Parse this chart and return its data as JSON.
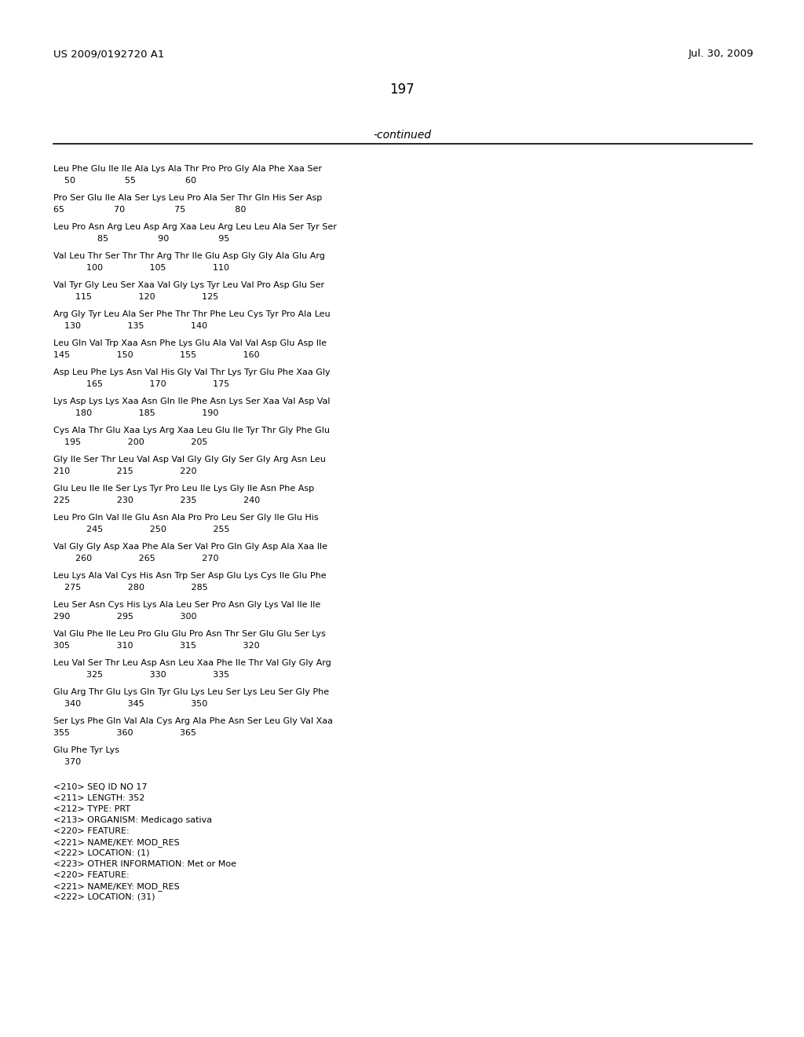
{
  "header_left": "US 2009/0192720 A1",
  "header_right": "Jul. 30, 2009",
  "page_number": "197",
  "continued_label": "-continued",
  "background_color": "#ffffff",
  "text_color": "#000000",
  "sequence_blocks": [
    [
      "Leu Phe Glu Ile Ile Ala Lys Ala Thr Pro Pro Gly Ala Phe Xaa Ser",
      "    50                  55                  60"
    ],
    [
      "Pro Ser Glu Ile Ala Ser Lys Leu Pro Ala Ser Thr Gln His Ser Asp",
      "65                  70                  75                  80"
    ],
    [
      "Leu Pro Asn Arg Leu Asp Arg Xaa Leu Arg Leu Leu Ala Ser Tyr Ser",
      "                85                  90                  95"
    ],
    [
      "Val Leu Thr Ser Thr Thr Arg Thr Ile Glu Asp Gly Gly Ala Glu Arg",
      "            100                 105                 110"
    ],
    [
      "Val Tyr Gly Leu Ser Xaa Val Gly Lys Tyr Leu Val Pro Asp Glu Ser",
      "        115                 120                 125"
    ],
    [
      "Arg Gly Tyr Leu Ala Ser Phe Thr Thr Phe Leu Cys Tyr Pro Ala Leu",
      "    130                 135                 140"
    ],
    [
      "Leu Gln Val Trp Xaa Asn Phe Lys Glu Ala Val Val Asp Glu Asp Ile",
      "145                 150                 155                 160"
    ],
    [
      "Asp Leu Phe Lys Asn Val His Gly Val Thr Lys Tyr Glu Phe Xaa Gly",
      "            165                 170                 175"
    ],
    [
      "Lys Asp Lys Lys Xaa Asn Gln Ile Phe Asn Lys Ser Xaa Val Asp Val",
      "        180                 185                 190"
    ],
    [
      "Cys Ala Thr Glu Xaa Lys Arg Xaa Leu Glu Ile Tyr Thr Gly Phe Glu",
      "    195                 200                 205"
    ],
    [
      "Gly Ile Ser Thr Leu Val Asp Val Gly Gly Gly Ser Gly Arg Asn Leu",
      "210                 215                 220"
    ],
    [
      "Glu Leu Ile Ile Ser Lys Tyr Pro Leu Ile Lys Gly Ile Asn Phe Asp",
      "225                 230                 235                 240"
    ],
    [
      "Leu Pro Gln Val Ile Glu Asn Ala Pro Pro Leu Ser Gly Ile Glu His",
      "            245                 250                 255"
    ],
    [
      "Val Gly Gly Asp Xaa Phe Ala Ser Val Pro Gln Gly Asp Ala Xaa Ile",
      "        260                 265                 270"
    ],
    [
      "Leu Lys Ala Val Cys His Asn Trp Ser Asp Glu Lys Cys Ile Glu Phe",
      "    275                 280                 285"
    ],
    [
      "Leu Ser Asn Cys His Lys Ala Leu Ser Pro Asn Gly Lys Val Ile Ile",
      "290                 295                 300"
    ],
    [
      "Val Glu Phe Ile Leu Pro Glu Glu Pro Asn Thr Ser Glu Glu Ser Lys",
      "305                 310                 315                 320"
    ],
    [
      "Leu Val Ser Thr Leu Asp Asn Leu Xaa Phe Ile Thr Val Gly Gly Arg",
      "            325                 330                 335"
    ],
    [
      "Glu Arg Thr Glu Lys Gln Tyr Glu Lys Leu Ser Lys Leu Ser Gly Phe",
      "    340                 345                 350"
    ],
    [
      "Ser Lys Phe Gln Val Ala Cys Arg Ala Phe Asn Ser Leu Gly Val Xaa",
      "355                 360                 365"
    ],
    [
      "Glu Phe Tyr Lys",
      "    370"
    ]
  ],
  "feature_lines": [
    "<210> SEQ ID NO 17",
    "<211> LENGTH: 352",
    "<212> TYPE: PRT",
    "<213> ORGANISM: Medicago sativa",
    "<220> FEATURE:",
    "<221> NAME/KEY: MOD_RES",
    "<222> LOCATION: (1)",
    "<223> OTHER INFORMATION: Met or Moe",
    "<220> FEATURE:",
    "<221> NAME/KEY: MOD_RES",
    "<222> LOCATION: (31)"
  ]
}
